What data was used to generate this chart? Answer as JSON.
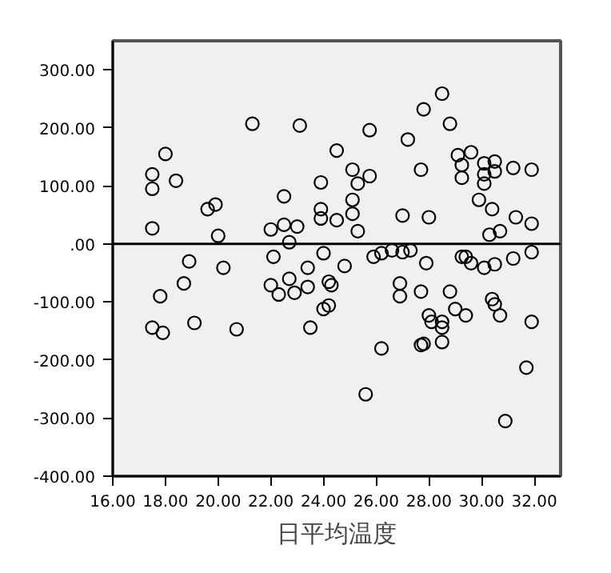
{
  "chart_data": {
    "type": "scatter",
    "xlabel": "日平均温度",
    "marker": "circle",
    "grid": false,
    "xlim": [
      16,
      33
    ],
    "ylim": [
      -400,
      350
    ],
    "xticks": [
      {
        "value": 16,
        "label": "16.00"
      },
      {
        "value": 18,
        "label": "18.00"
      },
      {
        "value": 20,
        "label": "20.00"
      },
      {
        "value": 22,
        "label": "22.00"
      },
      {
        "value": 24,
        "label": "24.00"
      },
      {
        "value": 26,
        "label": "26.00"
      },
      {
        "value": 28,
        "label": "28.00"
      },
      {
        "value": 30,
        "label": "30.00"
      },
      {
        "value": 32,
        "label": "32.00"
      }
    ],
    "yticks": [
      {
        "value": -400,
        "label": "-400.00"
      },
      {
        "value": -300,
        "label": "-300.00"
      },
      {
        "value": -200,
        "label": "-200.00"
      },
      {
        "value": -100,
        "label": "-100.00"
      },
      {
        "value": 0,
        "label": ".00"
      },
      {
        "value": 100,
        "label": "100.00"
      },
      {
        "value": 200,
        "label": "200.00"
      },
      {
        "value": 300,
        "label": "300.00"
      }
    ],
    "ref_lines": [
      {
        "axis": "y",
        "value": 0,
        "color": "#000000"
      }
    ],
    "series": [
      {
        "color": "#000000",
        "x": [
          18.0,
          17.5,
          18.4,
          17.5,
          17.5,
          21.3,
          23.1,
          19.6,
          19.9,
          20.0,
          22.0,
          22.5,
          23.0,
          22.5,
          22.7,
          28.5,
          27.8,
          28.8,
          25.75,
          27.2,
          24.5,
          29.6,
          29.1,
          29.25,
          29.25,
          30.1,
          30.5,
          30.5,
          30.1,
          30.1,
          31.2,
          31.9,
          27.7,
          23.9,
          25.1,
          25.75,
          25.3,
          25.1,
          23.9,
          23.9,
          24.5,
          25.1,
          25.3,
          27.0,
          28.0,
          29.9,
          30.4,
          31.3,
          31.9,
          30.3,
          30.7,
          18.9,
          22.1,
          20.2,
          18.7,
          22.0,
          22.3,
          22.7,
          22.9,
          23.4,
          23.4,
          17.8,
          17.5,
          17.9,
          19.1,
          20.7,
          23.5,
          24.0,
          24.0,
          24.8,
          24.2,
          24.3,
          24.2,
          25.9,
          26.2,
          26.6,
          27.0,
          27.3,
          27.9,
          26.9,
          26.9,
          27.7,
          28.8,
          28.0,
          28.1,
          28.5,
          28.5,
          29.0,
          29.4,
          27.7,
          27.8,
          28.5,
          26.2,
          25.6,
          29.25,
          29.4,
          29.6,
          30.1,
          30.5,
          31.2,
          31.9,
          30.4,
          30.5,
          30.7,
          31.9,
          31.7,
          30.9
        ],
        "values": [
          155,
          120,
          109,
          95,
          27,
          207,
          204,
          60,
          68,
          14,
          25,
          33,
          30,
          82,
          3,
          259,
          232,
          207,
          196,
          180,
          161,
          158,
          153,
          136,
          114,
          139,
          142,
          125,
          120,
          104,
          131,
          128,
          128,
          106,
          128,
          117,
          104,
          76,
          60,
          44,
          41,
          52,
          22,
          49,
          46,
          76,
          60,
          46,
          35,
          16,
          22,
          -30,
          -22,
          -41,
          -68,
          -71,
          -87,
          -60,
          -84,
          -74,
          -41,
          -90,
          -144,
          -153,
          -136,
          -147,
          -144,
          -112,
          -16,
          -38,
          -65,
          -71,
          -106,
          -22,
          -16,
          -11,
          -14,
          -11,
          -33,
          -68,
          -90,
          -82,
          -82,
          -123,
          -134,
          -134,
          -144,
          -112,
          -123,
          -174,
          -172,
          -169,
          -180,
          -259,
          -22,
          -22,
          -33,
          -41,
          -35,
          -25,
          -14,
          -95,
          -104,
          -123,
          -134,
          -213,
          -305
        ]
      }
    ]
  }
}
